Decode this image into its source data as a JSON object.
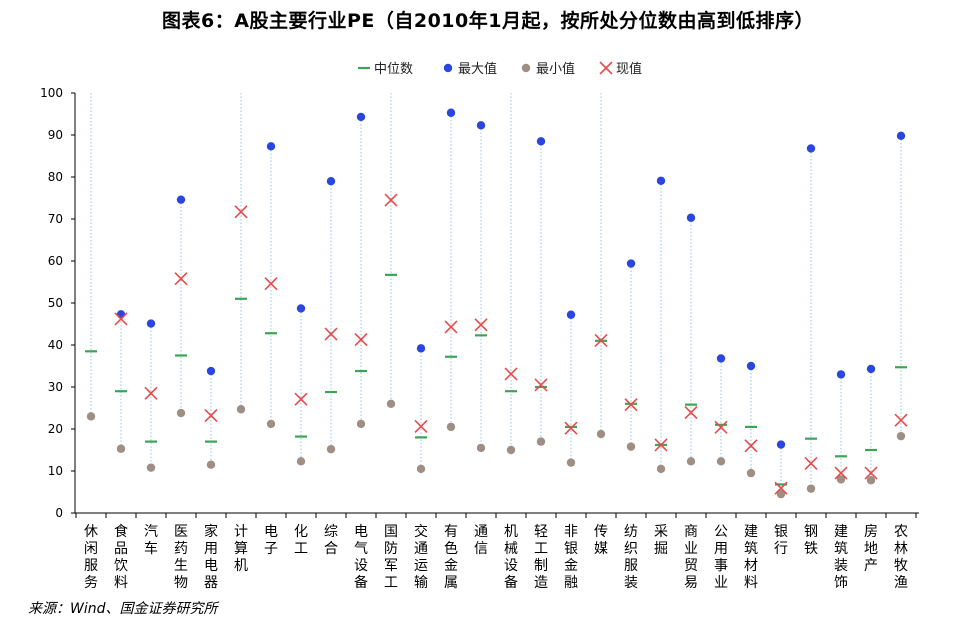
{
  "chart_data": {
    "type": "scatter",
    "title": "图表6：A股主要行业PE（自2010年1月起，按所处分位数由高到低排序）",
    "source": "来源：Wind、国金证券研究所",
    "ylim": [
      0,
      100
    ],
    "yticks": [
      0,
      10,
      20,
      30,
      40,
      50,
      60,
      70,
      80,
      90,
      100
    ],
    "legend_position": "top-center",
    "grid": false,
    "categories": [
      "休闲服务",
      "食品饮料",
      "汽车",
      "医药生物",
      "家用电器",
      "计算机",
      "电子",
      "化工",
      "综合",
      "电气设备",
      "国防军工",
      "交通运输",
      "有色金属",
      "通信",
      "机械设备",
      "轻工制造",
      "非银金融",
      "传媒",
      "纺织服装",
      "采掘",
      "商业贸易",
      "公用事业",
      "建筑材料",
      "银行",
      "钢铁",
      "建筑装饰",
      "房地产",
      "农林牧渔"
    ],
    "series": [
      {
        "name": "中位数",
        "marker": "dash",
        "color": "#3aa655",
        "values": [
          38.5,
          29,
          17,
          37.5,
          17,
          51,
          42.8,
          18.2,
          28.8,
          33.8,
          56.7,
          18,
          37.2,
          42.3,
          29,
          30,
          20.5,
          41,
          26,
          16.2,
          25.8,
          21,
          20.5,
          6.8,
          17.7,
          13.5,
          15,
          34.7
        ]
      },
      {
        "name": "最大值",
        "marker": "circle",
        "color": "#2a46e0",
        "values": [
          null,
          47.3,
          45.1,
          74.6,
          33.8,
          null,
          87.3,
          48.7,
          79,
          94.3,
          null,
          39.2,
          95.3,
          92.3,
          null,
          88.5,
          47.2,
          null,
          59.4,
          79.1,
          70.3,
          36.8,
          35,
          16.3,
          86.8,
          33,
          34.3,
          89.8
        ]
      },
      {
        "name": "最小值",
        "marker": "circle",
        "color": "#9e8e84",
        "values": [
          23,
          15.3,
          10.8,
          23.8,
          11.5,
          24.7,
          21.2,
          12.3,
          15.2,
          21.2,
          26,
          10.5,
          20.5,
          15.5,
          15,
          17,
          12,
          18.8,
          15.8,
          10.5,
          12.3,
          12.3,
          9.5,
          4.5,
          5.8,
          8,
          7.8,
          18.3
        ]
      },
      {
        "name": "现值",
        "marker": "x",
        "color": "#e84a4a",
        "values": [
          null,
          46.2,
          28.5,
          55.8,
          23.2,
          71.7,
          54.6,
          27.1,
          42.6,
          41.3,
          74.5,
          20.6,
          44.3,
          44.8,
          33.1,
          30.5,
          20.2,
          41.1,
          25.8,
          16.2,
          23.9,
          20.4,
          16,
          5.9,
          11.8,
          9.5,
          9.5,
          22.1
        ]
      }
    ]
  }
}
